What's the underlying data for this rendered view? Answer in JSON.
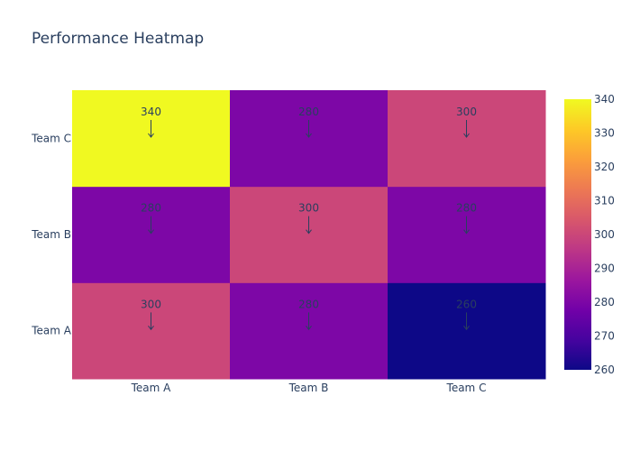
{
  "title": "Performance Heatmap",
  "colorbar": {
    "tick_values": [
      260,
      270,
      280,
      290,
      300,
      310,
      320,
      330,
      340
    ],
    "colorscale": [
      "#0d0887",
      "#46039f",
      "#7201a8",
      "#9c179e",
      "#bd3786",
      "#d8576b",
      "#ed7953",
      "#fb9f3a",
      "#fdca26",
      "#f0f921"
    ]
  },
  "chart_data": {
    "type": "heatmap",
    "title": "Performance Heatmap",
    "x_categories": [
      "Team A",
      "Team B",
      "Team C"
    ],
    "y_categories": [
      "Team A",
      "Team B",
      "Team C"
    ],
    "z": [
      [
        300,
        280,
        260
      ],
      [
        280,
        300,
        280
      ],
      [
        340,
        280,
        300
      ]
    ],
    "annotations": [
      [
        "300",
        "280",
        "260"
      ],
      [
        "280",
        "300",
        "280"
      ],
      [
        "340",
        "280",
        "300"
      ]
    ],
    "zmin": 260,
    "zmax": 340,
    "xlabel": "",
    "ylabel": "",
    "legend": "colorbar-right"
  }
}
